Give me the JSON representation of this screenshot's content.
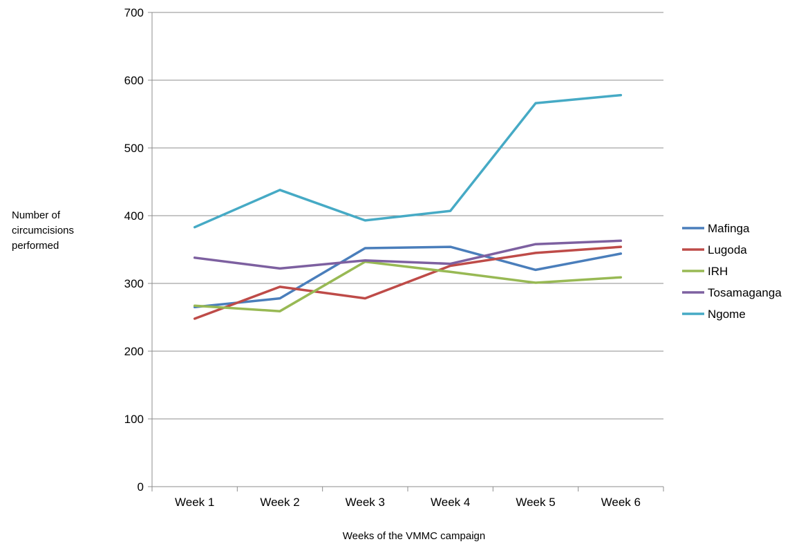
{
  "chart_data": {
    "type": "line",
    "title": "",
    "xlabel": "Weeks of the VMMC campaign",
    "ylabel_lines": [
      "Number of",
      "circumcisions",
      "performed"
    ],
    "categories": [
      "Week 1",
      "Week 2",
      "Week 3",
      "Week 4",
      "Week 5",
      "Week 6"
    ],
    "ylim": [
      0,
      700
    ],
    "yticks": [
      0,
      100,
      200,
      300,
      400,
      500,
      600,
      700
    ],
    "grid": true,
    "legend_position": "right",
    "series": [
      {
        "name": "Mafinga",
        "color": "#4a7ebb",
        "values": [
          265,
          278,
          352,
          354,
          320,
          344
        ]
      },
      {
        "name": "Lugoda",
        "color": "#be4b48",
        "values": [
          248,
          295,
          278,
          326,
          345,
          354
        ]
      },
      {
        "name": "IRH",
        "color": "#98b954",
        "values": [
          267,
          259,
          332,
          317,
          301,
          309
        ]
      },
      {
        "name": "Tosamaganga",
        "color": "#7d60a0",
        "values": [
          338,
          322,
          334,
          329,
          358,
          363
        ]
      },
      {
        "name": "Ngome",
        "color": "#46aac5",
        "values": [
          383,
          438,
          393,
          407,
          566,
          578
        ]
      }
    ]
  }
}
